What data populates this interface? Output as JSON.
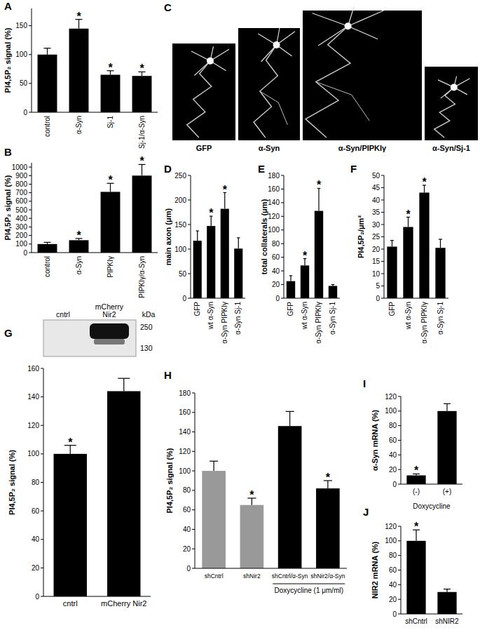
{
  "chart_data": [
    {
      "type": "bar",
      "panel": "A",
      "y_label": "PI4,5P₂ signal (%)",
      "categories": [
        "control",
        "α-Syn",
        "Sj-1",
        "Sj-1/α-Syn"
      ],
      "values": [
        100,
        145,
        65,
        63
      ],
      "errors": [
        11,
        16,
        7,
        7
      ],
      "colors": [
        "#000000",
        "#000000",
        "#000000",
        "#000000"
      ],
      "ylim": [
        0,
        180
      ],
      "yticks": [
        0,
        50,
        100,
        150
      ],
      "grid": false,
      "annotations": [
        {
          "index": 1,
          "text": "*"
        },
        {
          "index": 2,
          "text": "*"
        },
        {
          "index": 3,
          "text": "*"
        }
      ]
    },
    {
      "type": "bar",
      "panel": "B",
      "y_label": "PI4,5P₂ signal (%)",
      "categories": [
        "control",
        "α-Syn",
        "PIPKIγ",
        "PIPKIγ/α-Syn"
      ],
      "values": [
        100,
        145,
        710,
        900
      ],
      "errors": [
        20,
        20,
        100,
        130
      ],
      "colors": [
        "#000000",
        "#000000",
        "#000000",
        "#000000"
      ],
      "ylim": [
        0,
        1050
      ],
      "yticks": [
        0,
        100,
        200,
        300,
        400,
        500,
        600,
        700,
        800,
        900,
        1000
      ],
      "grid": false,
      "annotations": [
        {
          "index": 1,
          "text": "*"
        },
        {
          "index": 2,
          "text": "*"
        },
        {
          "index": 3,
          "text": "*"
        }
      ]
    },
    {
      "type": "bar",
      "panel": "D",
      "y_label": "main axon (μm)",
      "categories": [
        "GFP",
        "wt α-Syn",
        "α-Syn PIPKIγ",
        "α-Syn Sj-1"
      ],
      "values": [
        117,
        147,
        182,
        101
      ],
      "errors": [
        20,
        20,
        33,
        22
      ],
      "colors": [
        "#000000",
        "#000000",
        "#000000",
        "#000000"
      ],
      "ylim": [
        0,
        250
      ],
      "yticks": [
        0,
        50,
        100,
        150,
        200,
        250
      ],
      "grid": false,
      "annotations": [
        {
          "index": 1,
          "text": "*"
        },
        {
          "index": 2,
          "text": "*"
        }
      ]
    },
    {
      "type": "bar",
      "panel": "E",
      "y_label": "total collaterals (μm)",
      "categories": [
        "GFP",
        "wt α-Syn",
        "α-Syn PIPKIγ",
        "α-Syn Sj-1"
      ],
      "values": [
        25,
        48,
        128,
        18
      ],
      "errors": [
        8,
        10,
        33,
        2
      ],
      "colors": [
        "#000000",
        "#000000",
        "#000000",
        "#000000"
      ],
      "ylim": [
        0,
        180
      ],
      "yticks": [
        0,
        20,
        40,
        60,
        80,
        100,
        120,
        140,
        160,
        180
      ],
      "grid": false,
      "annotations": [
        {
          "index": 1,
          "text": "*"
        },
        {
          "index": 2,
          "text": "*"
        }
      ]
    },
    {
      "type": "bar",
      "panel": "F",
      "y_label": "PI4,5P₂/μm²",
      "categories": [
        "GFP",
        "wt α-Syn",
        "α-Syn PIPKIγ",
        "α-Syn Sj-1"
      ],
      "values": [
        21,
        29,
        43,
        20.5
      ],
      "errors": [
        2.5,
        4,
        3,
        3.5
      ],
      "colors": [
        "#000000",
        "#000000",
        "#000000",
        "#000000"
      ],
      "ylim": [
        0,
        50
      ],
      "yticks": [
        0,
        5,
        10,
        15,
        20,
        25,
        30,
        35,
        40,
        45,
        50
      ],
      "grid": false,
      "annotations": [
        {
          "index": 1,
          "text": "*"
        },
        {
          "index": 2,
          "text": "*"
        }
      ]
    },
    {
      "type": "bar",
      "panel": "G",
      "y_label": "PI4,5P₂ signal (%)",
      "categories": [
        "cntrl",
        "mCherry Nir2"
      ],
      "values": [
        100,
        144
      ],
      "errors": [
        6,
        9
      ],
      "colors": [
        "#000000",
        "#000000"
      ],
      "ylim": [
        0,
        160
      ],
      "yticks": [
        0,
        20,
        40,
        60,
        80,
        100,
        120,
        140,
        160
      ],
      "grid": false,
      "annotations": [
        {
          "index": 0,
          "text": "*"
        }
      ]
    },
    {
      "type": "bar",
      "panel": "H",
      "y_label": "PI4,5P₂ signal (%)",
      "categories": [
        "shCntrl",
        "shNir2",
        "shCntrl/α-Syn",
        "shNir2/α-Syn"
      ],
      "values": [
        100,
        65,
        146,
        82
      ],
      "errors": [
        10,
        7,
        15,
        8
      ],
      "colors": [
        "#999999",
        "#999999",
        "#000000",
        "#000000"
      ],
      "ylim": [
        0,
        180
      ],
      "yticks": [
        0,
        20,
        40,
        60,
        80,
        100,
        120,
        140,
        160,
        180
      ],
      "grid": false,
      "annotations": [
        {
          "index": 1,
          "text": "*"
        },
        {
          "index": 3,
          "text": "*"
        }
      ],
      "group_label": "Doxycycline (1 μm/ml)",
      "group_categories": [
        2,
        3
      ]
    },
    {
      "type": "bar",
      "panel": "I",
      "y_label": "α-Syn mRNA (%)",
      "categories": [
        "(-)",
        "(+)"
      ],
      "values": [
        12,
        100
      ],
      "errors": [
        2,
        10
      ],
      "colors": [
        "#000000",
        "#000000"
      ],
      "ylim": [
        0,
        120
      ],
      "yticks": [
        0,
        20,
        40,
        60,
        80,
        100,
        120
      ],
      "grid": false,
      "annotations": [
        {
          "index": 0,
          "text": "*"
        }
      ],
      "group_label": "Doxycycline",
      "group_categories": [
        0,
        1
      ]
    },
    {
      "type": "bar",
      "panel": "J",
      "y_label": "NIR2 mRNA (%)",
      "categories": [
        "shCntrl",
        "shNIR2"
      ],
      "values": [
        100,
        30
      ],
      "errors": [
        15,
        4
      ],
      "colors": [
        "#000000",
        "#000000"
      ],
      "ylim": [
        0,
        120
      ],
      "yticks": [
        0,
        20,
        40,
        60,
        80,
        100,
        120
      ],
      "grid": false,
      "annotations": [
        {
          "index": 0,
          "text": "*"
        }
      ]
    }
  ],
  "images": {
    "panel": "C",
    "labels": [
      "GFP",
      "α-Syn",
      "α-Syn/PIPKIγ",
      "α-Syn/Sj-1"
    ]
  },
  "blot": {
    "lanes": [
      "cntrl",
      "mCherry Nir2"
    ],
    "unit": "kDa",
    "markers": [
      250,
      130
    ]
  }
}
